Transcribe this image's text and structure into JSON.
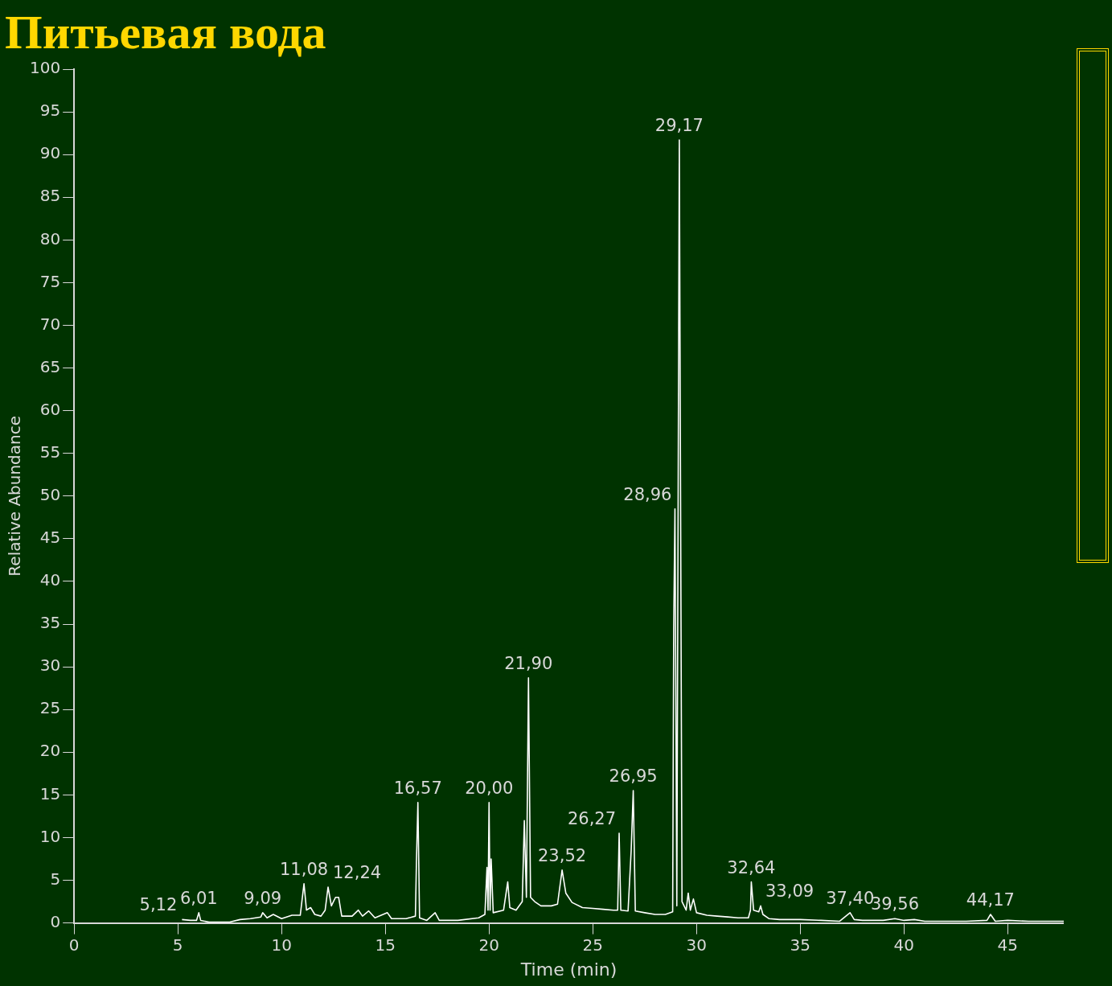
{
  "chart_data": {
    "type": "line",
    "title": "Питьевая вода",
    "xlabel": "Time (min)",
    "ylabel": "Relative Abundance",
    "x": [
      5.2,
      5.6,
      5.9,
      6.01,
      6.1,
      6.5,
      7.0,
      7.5,
      8.0,
      8.5,
      9.0,
      9.09,
      9.3,
      9.6,
      10.0,
      10.5,
      10.9,
      11.08,
      11.2,
      11.4,
      11.6,
      11.9,
      12.1,
      12.24,
      12.4,
      12.6,
      12.75,
      12.9,
      13.4,
      13.7,
      13.9,
      14.2,
      14.5,
      15.1,
      15.3,
      16.0,
      16.45,
      16.5,
      16.57,
      16.65,
      17.0,
      17.4,
      17.6,
      18.5,
      19.5,
      19.8,
      19.9,
      19.95,
      20.0,
      20.05,
      20.1,
      20.2,
      20.7,
      20.9,
      21.0,
      21.3,
      21.6,
      21.7,
      21.8,
      21.9,
      22.0,
      22.2,
      22.5,
      23.0,
      23.3,
      23.52,
      23.7,
      24.0,
      24.5,
      25.0,
      25.5,
      26.0,
      26.2,
      26.27,
      26.35,
      26.7,
      26.85,
      26.95,
      27.05,
      27.5,
      28.0,
      28.5,
      28.85,
      28.9,
      28.96,
      29.05,
      29.17,
      29.3,
      29.5,
      29.6,
      29.7,
      29.85,
      30.0,
      30.5,
      31.0,
      31.5,
      32.0,
      32.5,
      32.6,
      32.64,
      32.75,
      33.0,
      33.09,
      33.2,
      33.5,
      34.0,
      35.0,
      36.0,
      36.9,
      37.4,
      37.6,
      38.0,
      39.0,
      39.56,
      40.0,
      40.5,
      41.0,
      43.0,
      44.0,
      44.17,
      44.4,
      45.0,
      46.0,
      47.7
    ],
    "series": [
      {
        "color": "#ffffff",
        "values": [
          0.4,
          0.3,
          0.3,
          1.2,
          0.3,
          0.1,
          0.1,
          0.1,
          0.4,
          0.5,
          0.7,
          1.2,
          0.6,
          1.0,
          0.5,
          0.9,
          0.9,
          4.6,
          1.5,
          1.8,
          1.0,
          0.8,
          1.5,
          4.2,
          2.0,
          3.0,
          3.0,
          0.8,
          0.8,
          1.5,
          0.8,
          1.4,
          0.6,
          1.2,
          0.5,
          0.5,
          0.8,
          7.2,
          14.1,
          0.6,
          0.3,
          1.2,
          0.3,
          0.3,
          0.6,
          1.0,
          6.5,
          1.5,
          14.1,
          1.5,
          7.5,
          1.2,
          1.5,
          4.8,
          1.8,
          1.5,
          2.5,
          12.0,
          3.0,
          28.7,
          3.0,
          2.5,
          2.0,
          2.0,
          2.2,
          6.2,
          3.5,
          2.4,
          1.8,
          1.7,
          1.6,
          1.5,
          1.5,
          10.5,
          1.5,
          1.4,
          8.5,
          15.5,
          1.4,
          1.2,
          1.0,
          1.0,
          1.3,
          34.5,
          48.5,
          2.0,
          91.7,
          2.5,
          1.5,
          3.5,
          1.5,
          2.8,
          1.2,
          0.9,
          0.8,
          0.7,
          0.6,
          0.6,
          1.5,
          4.8,
          1.5,
          1.3,
          2.0,
          1.0,
          0.5,
          0.4,
          0.4,
          0.3,
          0.2,
          1.2,
          0.4,
          0.3,
          0.3,
          0.5,
          0.3,
          0.4,
          0.2,
          0.2,
          0.3,
          1.0,
          0.2,
          0.3,
          0.2,
          0.2
        ]
      }
    ],
    "xlim": [
      0,
      47.7
    ],
    "ylim": [
      0,
      100
    ],
    "xticks": [
      0,
      5,
      10,
      15,
      20,
      25,
      30,
      35,
      40,
      45
    ],
    "yticks": [
      0,
      5,
      10,
      15,
      20,
      25,
      30,
      35,
      40,
      45,
      50,
      55,
      60,
      65,
      70,
      75,
      80,
      85,
      90,
      95,
      100
    ],
    "grid": false,
    "legend": false,
    "marker": "none",
    "line_style": "solid",
    "annotations": [
      {
        "text": "5,12",
        "x": 5.12,
        "y": 0.4
      },
      {
        "text": "6,01",
        "x": 6.01,
        "y": 1.2
      },
      {
        "text": "9,09",
        "x": 9.09,
        "y": 1.2
      },
      {
        "text": "11,08",
        "x": 11.08,
        "y": 4.6
      },
      {
        "text": "12,24",
        "x": 12.24,
        "y": 4.2
      },
      {
        "text": "16,57",
        "x": 16.57,
        "y": 14.1
      },
      {
        "text": "20,00",
        "x": 20.0,
        "y": 14.1
      },
      {
        "text": "21,90",
        "x": 21.9,
        "y": 28.7
      },
      {
        "text": "23,52",
        "x": 23.52,
        "y": 6.2
      },
      {
        "text": "26,27",
        "x": 26.27,
        "y": 10.5
      },
      {
        "text": "26,95",
        "x": 26.95,
        "y": 15.5
      },
      {
        "text": "28,96",
        "x": 28.96,
        "y": 48.5
      },
      {
        "text": "29,17",
        "x": 29.17,
        "y": 91.7
      },
      {
        "text": "32,64",
        "x": 32.64,
        "y": 4.8
      },
      {
        "text": "33,09",
        "x": 33.09,
        "y": 2.0
      },
      {
        "text": "37,40",
        "x": 37.4,
        "y": 1.2
      },
      {
        "text": "39,56",
        "x": 39.56,
        "y": 0.5
      },
      {
        "text": "44,17",
        "x": 44.17,
        "y": 1.0
      }
    ]
  }
}
